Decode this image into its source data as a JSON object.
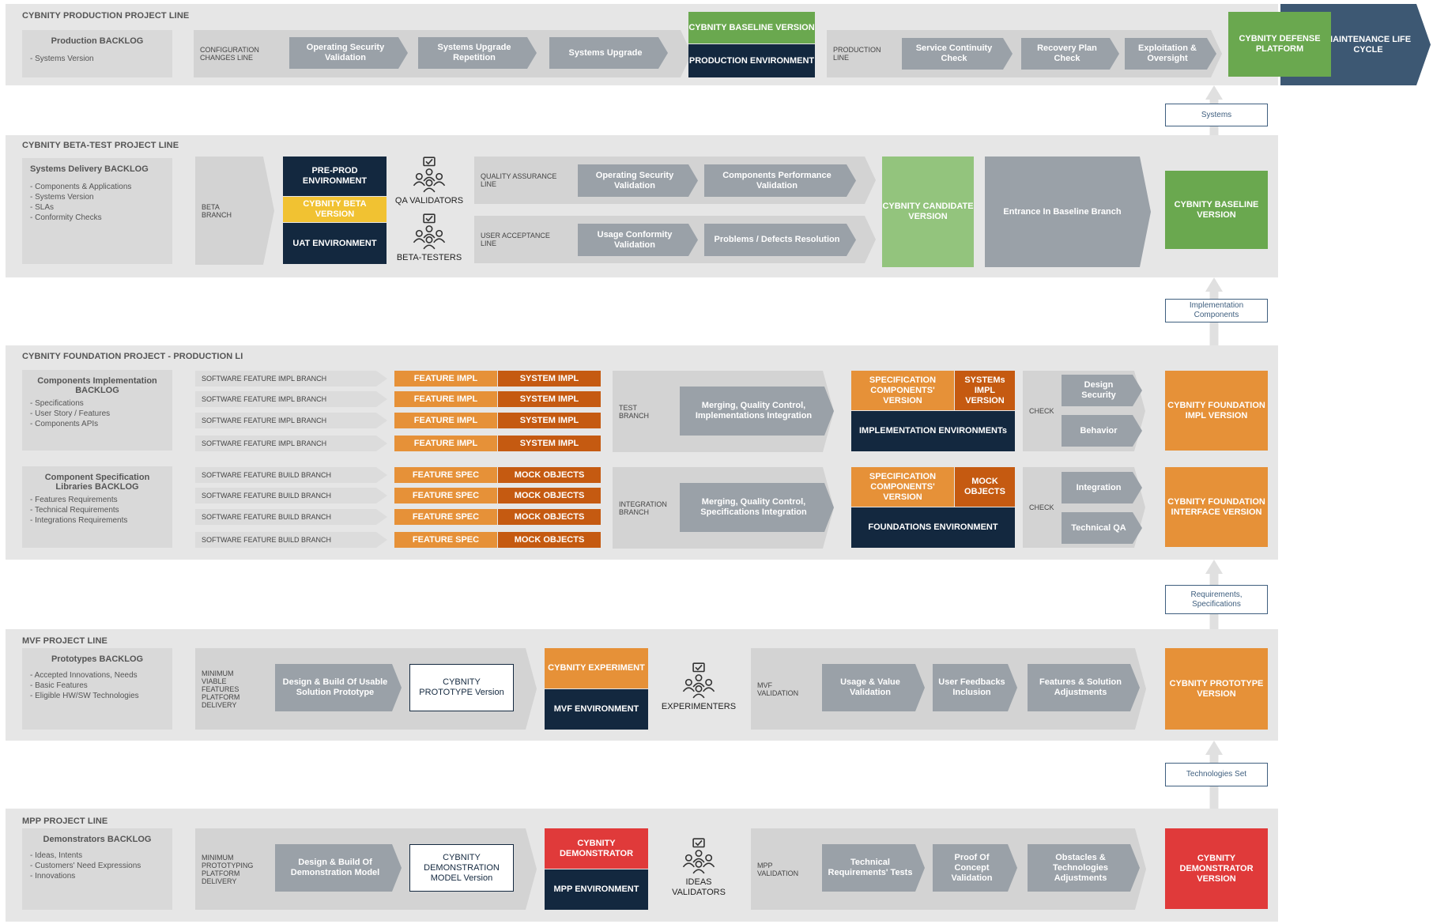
{
  "production": {
    "title": "CYBNITY PRODUCTION PROJECT LINE",
    "backlog_title": "Production BACKLOG",
    "backlog_items": [
      "Systems Version"
    ],
    "config_line": "CONFIGURATION CHANGES LINE",
    "steps": [
      "Operating Security Validation",
      "Systems Upgrade Repetition",
      "Systems Upgrade"
    ],
    "baseline_version": "CYBNITY BASELINE VERSION",
    "production_env": "PRODUCTION ENVIRONMENT",
    "production_line": "PRODUCTION LINE",
    "prod_steps": [
      "Service Continuity Check",
      "Recovery Plan Check",
      "Exploitation & Oversight"
    ],
    "defense_platform": "CYBNITY DEFENSE PLATFORM",
    "maintenance": "MAINTENANCE LIFE CYCLE"
  },
  "tags": {
    "systems": "Systems",
    "implementation_components": "Implementation Components",
    "requirements_specifications": "Requirements, Specifications",
    "technologies_set": "Technologies Set"
  },
  "beta": {
    "title": "CYBNITY BETA-TEST PROJECT LINE",
    "backlog_title": "Systems Delivery BACKLOG",
    "backlog_items": [
      "Components & Applications",
      "Systems Version",
      "SLAs",
      "Conformity Checks"
    ],
    "branch": "BETA BRANCH",
    "preprod_env": "PRE-PROD ENVIRONMENT",
    "beta_version": "CYBNITY BETA VERSION",
    "uat_env": "UAT ENVIRONMENT",
    "qa_validators": "QA VALIDATORS",
    "beta_testers": "BETA-TESTERS",
    "qa_line": "QUALITY ASSURANCE LINE",
    "qa_steps": [
      "Operating Security Validation",
      "Components Performance Validation"
    ],
    "ua_line": "USER ACCEPTANCE LINE",
    "ua_steps": [
      "Usage Conformity Validation",
      "Problems / Defects Resolution"
    ],
    "candidate_version": "CYBNITY CANDIDATE VERSION",
    "entrance": "Entrance In Baseline Branch",
    "baseline_version": "CYBNITY BASELINE VERSION"
  },
  "foundation": {
    "title": "CYBNITY FOUNDATION PROJECT - PRODUCTION LI",
    "impl_backlog_title": "Components Implementation BACKLOG",
    "impl_backlog_items": [
      "Specifications",
      "User Story / Features",
      "Components APIs"
    ],
    "impl_branch": "SOFTWARE FEATURE IMPL BRANCH",
    "feature_impl": "FEATURE IMPL",
    "system_impl": "SYSTEM IMPL",
    "test_branch": "TEST BRANCH",
    "merge_impl": "Merging, Quality Control, Implementations Integration",
    "spec_version": "SPECIFICATION COMPONENTS' VERSION",
    "systems_impl_version": "SYSTEMs IMPL VERSION",
    "impl_envs": "IMPLEMENTATION ENVIRONMENTs",
    "check": "CHECK",
    "impl_checks": [
      "Design Security",
      "Behavior"
    ],
    "impl_version": "CYBNITY FOUNDATION IMPL VERSION",
    "spec_backlog_title": "Component Specification Libraries BACKLOG",
    "spec_backlog_items": [
      "Features Requirements",
      "Technical Requirements",
      "Integrations Requirements"
    ],
    "build_branch": "SOFTWARE FEATURE BUILD BRANCH",
    "feature_spec": "FEATURE SPEC",
    "mock_objects": "MOCK OBJECTS",
    "integration_branch": "INTEGRATION BRANCH",
    "merge_spec": "Merging, Quality Control, Specifications Integration",
    "mock_objects_box": "MOCK OBJECTS",
    "foundations_env": "FOUNDATIONS ENVIRONMENT",
    "spec_checks": [
      "Integration",
      "Technical QA"
    ],
    "interface_version": "CYBNITY FOUNDATION INTERFACE VERSION"
  },
  "mvf": {
    "title": "MVF PROJECT LINE",
    "backlog_title": "Prototypes BACKLOG",
    "backlog_items": [
      "Accepted Innovations, Needs",
      "Basic Features",
      "Eligible HW/SW Technologies"
    ],
    "delivery": "MINIMUM VIABLE FEATURES PLATFORM DELIVERY",
    "design_build": "Design & Build Of Usable Solution Prototype",
    "prototype_version": "CYBNITY PROTOTYPE Version",
    "experiment": "CYBNITY EXPERIMENT",
    "env": "MVF ENVIRONMENT",
    "experimenters": "EXPERIMENTERS",
    "validation": "MVF VALIDATION",
    "steps": [
      "Usage & Value Validation",
      "User Feedbacks Inclusion",
      "Features & Solution Adjustments"
    ],
    "final_version": "CYBNITY PROTOTYPE VERSION"
  },
  "mpp": {
    "title": "MPP PROJECT LINE",
    "backlog_title": "Demonstrators BACKLOG",
    "backlog_items": [
      "Ideas, Intents",
      "Customers' Need Expressions",
      "Innovations"
    ],
    "delivery": "MINIMUM PROTOTYPING PLATFORM DELIVERY",
    "design_build": "Design & Build Of Demonstration Model",
    "model_version": "CYBNITY DEMONSTRATION MODEL Version",
    "demonstrator": "CYBNITY DEMONSTRATOR",
    "env": "MPP ENVIRONMENT",
    "ideas_validators": "IDEAS VALIDATORS",
    "validation": "MPP VALIDATION",
    "steps": [
      "Technical Requirements' Tests",
      "Proof Of Concept Validation",
      "Obstacles & Technologies Adjustments"
    ],
    "final_version": "CYBNITY DEMONSTRATOR VERSION"
  },
  "colors": {
    "navy": "#13283f",
    "green": "#6aa84f",
    "light_green": "#93c47d",
    "orange": "#e69138",
    "dark_orange": "#c55a11",
    "yellow": "#f1c232",
    "red": "#e03a3a",
    "step_gray": "#9aa1a8",
    "maintenance_blue": "#3d5873"
  }
}
